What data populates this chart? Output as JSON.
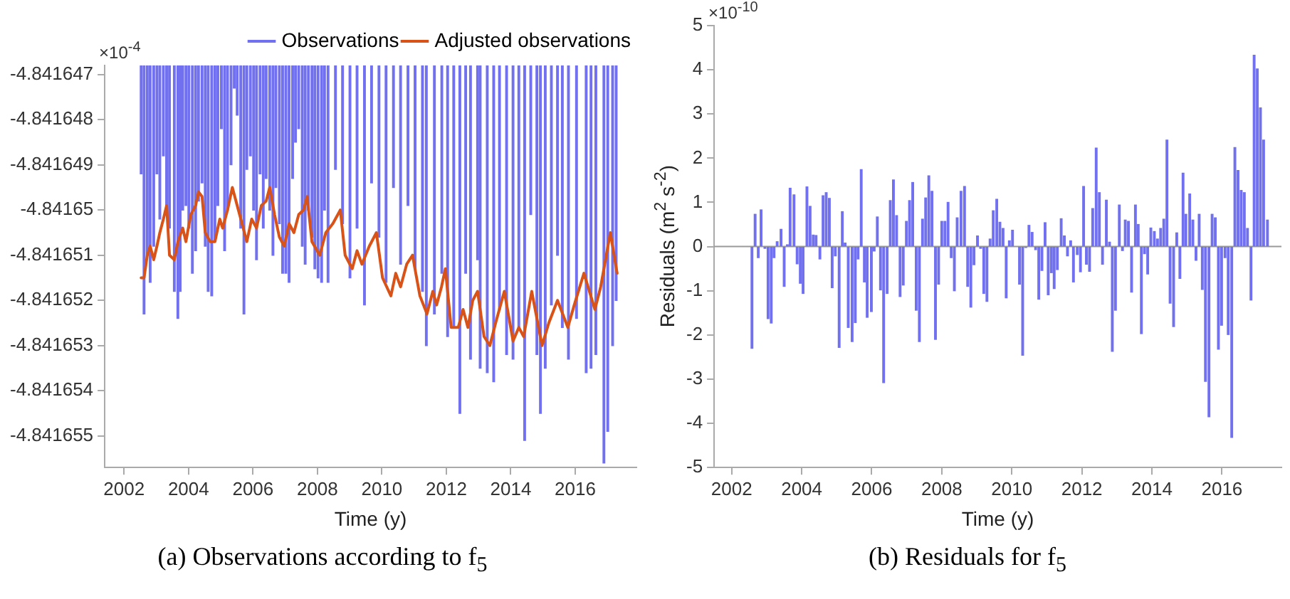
{
  "chart_data": [
    {
      "type": "bar",
      "title": "(a) Observations according to f$_{5}$",
      "xlabel": "Time (y)",
      "annotations": [
        "×10$^{-4}$"
      ],
      "legend": "top right",
      "grid": false,
      "marker": "none",
      "line_style": "solid",
      "xlim": [
        2001.4,
        2017.9
      ],
      "xticks": [
        2002,
        2004,
        2006,
        2008,
        2010,
        2012,
        2014,
        2016
      ],
      "ylim": [
        -4.8416557,
        -4.8416468
      ],
      "yticks": [
        -4.841655,
        -4.841654,
        -4.841653,
        -4.841652,
        -4.841651,
        -4.84165,
        -4.841649,
        -4.841648,
        -4.841647
      ],
      "series": [
        {
          "name": "Observations",
          "type": "bar",
          "color": "#7070f0",
          "x": [
            2002.53,
            2002.62,
            2002.72,
            2002.81,
            2002.92,
            2003.02,
            2003.11,
            2003.22,
            2003.32,
            2003.41,
            2003.56,
            2003.67,
            2003.74,
            2003.82,
            2003.92,
            2004.01,
            2004.12,
            2004.22,
            2004.31,
            2004.42,
            2004.52,
            2004.61,
            2004.72,
            2004.82,
            2004.91,
            2005.02,
            2005.12,
            2005.21,
            2005.32,
            2005.42,
            2005.51,
            2005.62,
            2005.72,
            2005.81,
            2005.92,
            2006.02,
            2006.11,
            2006.22,
            2006.32,
            2006.41,
            2006.52,
            2006.62,
            2006.71,
            2006.82,
            2006.92,
            2007.02,
            2007.12,
            2007.23,
            2007.32,
            2007.42,
            2007.53,
            2007.62,
            2007.72,
            2007.83,
            2007.92,
            2008.02,
            2008.13,
            2008.22,
            2008.33,
            2008.56,
            2008.78,
            2009.01,
            2009.23,
            2009.46,
            2009.68,
            2009.91,
            2010.13,
            2010.36,
            2010.58,
            2010.81,
            2011.03,
            2011.26,
            2011.38,
            2011.63,
            2011.86,
            2012.04,
            2012.23,
            2012.42,
            2012.6,
            2012.75,
            2012.97,
            2013.05,
            2013.27,
            2013.47,
            2013.65,
            2013.87,
            2014.07,
            2014.25,
            2014.43,
            2014.62,
            2014.81,
            2014.92,
            2015.07,
            2015.26,
            2015.45,
            2015.6,
            2015.79,
            2016.04,
            2016.34,
            2016.49,
            2016.64,
            2016.89,
            2017.01,
            2017.16,
            2017.27
          ],
          "values": [
            -4.8416492,
            -4.8416523,
            -4.841651,
            -4.8416516,
            -4.8416508,
            -4.8416492,
            -4.8416502,
            -4.8416488,
            -4.84165,
            -4.8416504,
            -4.8416518,
            -4.8416524,
            -4.8416518,
            -4.84165,
            -4.8416499,
            -4.8416504,
            -4.8416514,
            -4.8416509,
            -4.8416498,
            -4.8416494,
            -4.8416508,
            -4.8416518,
            -4.8416519,
            -4.8416507,
            -4.8416499,
            -4.8416482,
            -4.8416509,
            -4.84165,
            -4.841649,
            -4.8416473,
            -4.8416479,
            -4.8416504,
            -4.8416523,
            -4.8416491,
            -4.8416488,
            -4.84165,
            -4.8416511,
            -4.8416492,
            -4.8416504,
            -4.8416493,
            -4.84165,
            -4.841651,
            -4.8416495,
            -4.8416503,
            -4.8416514,
            -4.8416514,
            -4.8416516,
            -4.8416493,
            -4.8416485,
            -4.8416482,
            -4.8416508,
            -4.8416512,
            -4.84165,
            -4.8416506,
            -4.8416513,
            -4.8416515,
            -4.8416516,
            -4.84165,
            -4.8416516,
            -4.8416491,
            -4.8416503,
            -4.8416515,
            -4.8416504,
            -4.8416521,
            -4.8416494,
            -4.8416506,
            -4.8416516,
            -4.8416495,
            -4.8416512,
            -4.8416499,
            -4.8416513,
            -4.8416518,
            -4.841653,
            -4.8416523,
            -4.8416514,
            -4.8416528,
            -4.8416526,
            -4.8416545,
            -4.8416514,
            -4.8416533,
            -4.8416511,
            -4.8416535,
            -4.8416536,
            -4.8416538,
            -4.8416522,
            -4.8416532,
            -4.8416533,
            -4.8416526,
            -4.8416551,
            -4.8416501,
            -4.8416532,
            -4.8416545,
            -4.8416535,
            -4.8416521,
            -4.841651,
            -4.8416526,
            -4.8416533,
            -4.8416524,
            -4.8416536,
            -4.8416535,
            -4.8416532,
            -4.8416556,
            -4.8416549,
            -4.841653,
            -4.841652
          ]
        },
        {
          "name": "Adjusted observations",
          "type": "line",
          "color": "#d95319",
          "x": [
            2002.53,
            2002.62,
            2002.72,
            2002.81,
            2002.92,
            2003.02,
            2003.11,
            2003.22,
            2003.32,
            2003.41,
            2003.56,
            2003.67,
            2003.82,
            2003.92,
            2004.07,
            2004.22,
            2004.31,
            2004.42,
            2004.52,
            2004.67,
            2004.82,
            2004.97,
            2005.06,
            2005.21,
            2005.36,
            2005.51,
            2005.66,
            2005.81,
            2005.96,
            2006.11,
            2006.26,
            2006.41,
            2006.52,
            2006.67,
            2006.82,
            2006.97,
            2007.12,
            2007.27,
            2007.42,
            2007.57,
            2007.68,
            2007.83,
            2008.07,
            2008.26,
            2008.48,
            2008.71,
            2008.86,
            2009.08,
            2009.23,
            2009.38,
            2009.61,
            2009.83,
            2010.02,
            2010.28,
            2010.43,
            2010.58,
            2010.77,
            2010.95,
            2011.18,
            2011.4,
            2011.58,
            2011.7,
            2011.85,
            2011.97,
            2012.15,
            2012.37,
            2012.52,
            2012.67,
            2012.82,
            2012.97,
            2013.17,
            2013.35,
            2013.53,
            2013.8,
            2014.07,
            2014.25,
            2014.4,
            2014.65,
            2014.97,
            2015.18,
            2015.45,
            2015.77,
            2015.97,
            2016.27,
            2016.61,
            2016.79,
            2017.09,
            2017.3
          ],
          "values": [
            -4.8416515,
            -4.8416515,
            -4.841651,
            -4.8416508,
            -4.8416511,
            -4.8416508,
            -4.8416505,
            -4.8416502,
            -4.8416499,
            -4.841651,
            -4.8416511,
            -4.8416507,
            -4.8416504,
            -4.8416507,
            -4.8416501,
            -4.8416499,
            -4.8416496,
            -4.8416497,
            -4.8416505,
            -4.8416507,
            -4.8416507,
            -4.8416502,
            -4.8416504,
            -4.84165,
            -4.8416495,
            -4.8416499,
            -4.8416503,
            -4.8416507,
            -4.8416502,
            -4.8416504,
            -4.8416499,
            -4.8416498,
            -4.8416495,
            -4.8416501,
            -4.8416506,
            -4.8416508,
            -4.8416503,
            -4.8416505,
            -4.8416501,
            -4.84165,
            -4.8416497,
            -4.8416507,
            -4.841651,
            -4.8416505,
            -4.8416503,
            -4.84165,
            -4.841651,
            -4.8416513,
            -4.8416509,
            -4.8416512,
            -4.8416508,
            -4.8416505,
            -4.8416515,
            -4.8416519,
            -4.8416514,
            -4.8416517,
            -4.8416512,
            -4.841651,
            -4.8416519,
            -4.8416523,
            -4.8416518,
            -4.8416521,
            -4.8416517,
            -4.8416513,
            -4.8416526,
            -4.8416526,
            -4.8416522,
            -4.8416526,
            -4.841652,
            -4.8416518,
            -4.8416528,
            -4.841653,
            -4.8416525,
            -4.8416518,
            -4.8416529,
            -4.8416526,
            -4.8416528,
            -4.8416518,
            -4.841653,
            -4.8416525,
            -4.841652,
            -4.8416526,
            -4.8416521,
            -4.8416514,
            -4.8416522,
            -4.8416517,
            -4.8416505,
            -4.8416514
          ]
        }
      ]
    },
    {
      "type": "bar",
      "title": "(b) Residuals for f$_{5}$",
      "xlabel": "Time (y)",
      "ylabel": "Residuals  (m$^{2}$ s$^{-2}$)",
      "annotations": [
        "×10$^{-10}$"
      ],
      "grid": false,
      "color": "#7070f0",
      "xlim": [
        2001.5,
        2017.7
      ],
      "xticks": [
        2002,
        2004,
        2006,
        2008,
        2010,
        2012,
        2014,
        2016
      ],
      "ylim": [
        -5,
        5
      ],
      "yticks": [
        -5,
        -4,
        -3,
        -2,
        -1,
        0,
        1,
        2,
        3,
        4,
        5
      ],
      "ref_lines": [
        {
          "axis": "y",
          "value": 0,
          "color": "#999999"
        }
      ],
      "x": [
        2002.58,
        2002.67,
        2002.76,
        2002.84,
        2002.95,
        2003.04,
        2003.13,
        2003.21,
        2003.3,
        2003.41,
        2003.5,
        2003.59,
        2003.67,
        2003.78,
        2003.87,
        2003.96,
        2004.04,
        2004.15,
        2004.24,
        2004.33,
        2004.41,
        2004.52,
        2004.61,
        2004.7,
        2004.79,
        2004.87,
        2004.96,
        2005.07,
        2005.16,
        2005.24,
        2005.33,
        2005.44,
        2005.53,
        2005.61,
        2005.7,
        2005.79,
        2005.87,
        2005.99,
        2006.07,
        2006.16,
        2006.25,
        2006.34,
        2006.44,
        2006.53,
        2006.62,
        2006.71,
        2006.81,
        2006.9,
        2006.99,
        2007.08,
        2007.17,
        2007.27,
        2007.36,
        2007.45,
        2007.54,
        2007.63,
        2007.72,
        2007.82,
        2007.91,
        2008.0,
        2008.09,
        2008.18,
        2008.27,
        2008.36,
        2008.44,
        2008.55,
        2008.65,
        2008.74,
        2008.83,
        2008.92,
        2009.02,
        2009.11,
        2009.2,
        2009.29,
        2009.38,
        2009.47,
        2009.57,
        2009.66,
        2009.75,
        2009.84,
        2009.93,
        2010.02,
        2010.22,
        2010.31,
        2010.4,
        2010.49,
        2010.58,
        2010.68,
        2010.77,
        2010.86,
        2010.95,
        2011.04,
        2011.13,
        2011.21,
        2011.3,
        2011.41,
        2011.5,
        2011.59,
        2011.68,
        2011.76,
        2011.87,
        2011.96,
        2012.05,
        2012.13,
        2012.22,
        2012.31,
        2012.41,
        2012.5,
        2012.59,
        2012.7,
        2012.79,
        2012.87,
        2012.96,
        2013.07,
        2013.16,
        2013.24,
        2013.33,
        2013.42,
        2013.53,
        2013.61,
        2013.7,
        2013.79,
        2013.88,
        2013.97,
        2014.07,
        2014.16,
        2014.25,
        2014.34,
        2014.43,
        2014.52,
        2014.62,
        2014.71,
        2014.8,
        2014.89,
        2014.97,
        2015.08,
        2015.17,
        2015.26,
        2015.35,
        2015.44,
        2015.53,
        2015.63,
        2015.72,
        2015.81,
        2015.9,
        2015.99,
        2016.09,
        2016.18,
        2016.28,
        2016.37,
        2016.46,
        2016.55,
        2016.64,
        2016.73,
        2016.83,
        2016.92,
        2017.01,
        2017.1,
        2017.19,
        2017.3
      ],
      "values": [
        -2.3,
        0.73,
        -0.25,
        0.83,
        -0.04,
        -1.63,
        -1.73,
        -0.25,
        0.11,
        0.39,
        -0.9,
        0.04,
        1.32,
        1.17,
        -0.39,
        -0.83,
        -1.06,
        1.35,
        0.91,
        0.26,
        0.25,
        -0.28,
        1.15,
        1.22,
        1.09,
        -0.93,
        -0.21,
        -2.28,
        0.79,
        0.08,
        -1.83,
        -2.15,
        -1.72,
        -0.28,
        1.74,
        -0.8,
        -1.6,
        -1.47,
        -0.1,
        0.67,
        -0.98,
        -3.08,
        -1.06,
        1.04,
        1.51,
        0.7,
        -1.13,
        -0.87,
        0.57,
        1.04,
        1.45,
        -1.44,
        -2.15,
        0.62,
        1.1,
        1.6,
        1.25,
        -2.1,
        -0.85,
        0.57,
        0.57,
        1.0,
        -0.25,
        -1.0,
        0.65,
        1.25,
        1.36,
        -0.9,
        -1.37,
        -0.41,
        0.24,
        -0.04,
        -1.06,
        -1.24,
        0.17,
        0.81,
        1.07,
        0.55,
        0.41,
        -1.16,
        0.13,
        0.37,
        -0.85,
        -2.46,
        -0.02,
        0.48,
        0.32,
        -0.07,
        -1.19,
        -0.54,
        0.54,
        -1.09,
        -0.59,
        -0.95,
        -0.52,
        0.63,
        0.24,
        -0.21,
        0.13,
        -0.8,
        -0.18,
        -0.57,
        1.36,
        -0.4,
        -0.56,
        0.86,
        2.23,
        1.22,
        -0.4,
        1.05,
        0.1,
        -2.37,
        -1.44,
        0.94,
        -0.09,
        0.6,
        0.57,
        -1.03,
        0.94,
        0.5,
        -1.97,
        -0.16,
        -0.62,
        0.42,
        0.34,
        0.17,
        0.41,
        0.62,
        2.41,
        -1.28,
        -1.81,
        0.31,
        -0.72,
        1.66,
        0.73,
        1.19,
        0.6,
        -0.31,
        0.73,
        -0.97,
        -3.05,
        -3.85,
        0.73,
        0.65,
        -2.32,
        -1.78,
        -0.25,
        -1.99,
        -4.32,
        2.24,
        1.72,
        1.27,
        1.22,
        0.41,
        -1.21,
        4.33,
        4.02,
        3.14,
        2.41,
        0.6
      ]
    }
  ]
}
